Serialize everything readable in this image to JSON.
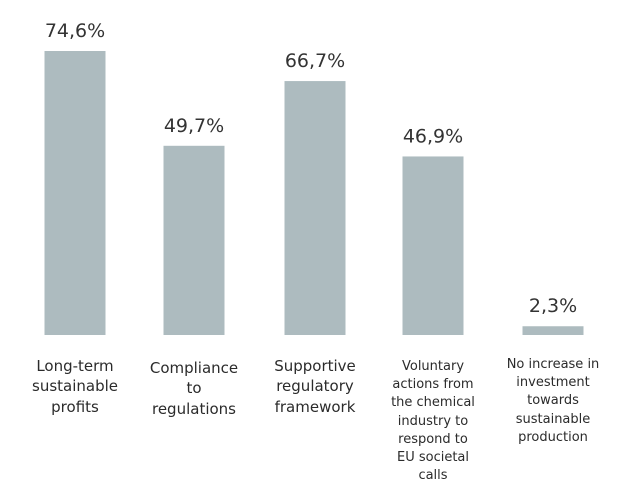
{
  "chart_data": {
    "type": "bar",
    "title": "",
    "xlabel": "",
    "ylabel": "",
    "ylim": [
      0,
      74.6
    ],
    "grid": false,
    "categories": [
      "Long-term sustainable profits",
      "Compliance to regulations",
      "Supportive regulatory framework",
      "Voluntary actions from the chemical industry to respond to EU societal calls",
      "No increase in investment towards sustainable production"
    ],
    "category_lines": [
      [
        "Long-term",
        "sustainable",
        "profits"
      ],
      [
        "Compliance",
        "to",
        "regulations"
      ],
      [
        "Supportive",
        "regulatory",
        "framework"
      ],
      [
        "Voluntary",
        "actions from",
        "the chemical",
        "industry to",
        "respond to",
        "EU societal",
        "calls"
      ],
      [
        "No increase in",
        "investment",
        "towards",
        "sustainable",
        "production"
      ]
    ],
    "values": [
      74.6,
      49.7,
      66.7,
      46.9,
      2.3
    ],
    "value_labels": [
      "74,6%",
      "49,7%",
      "66,7%",
      "46,9%",
      "2,3%"
    ],
    "bar_color": "#adbbbf"
  }
}
